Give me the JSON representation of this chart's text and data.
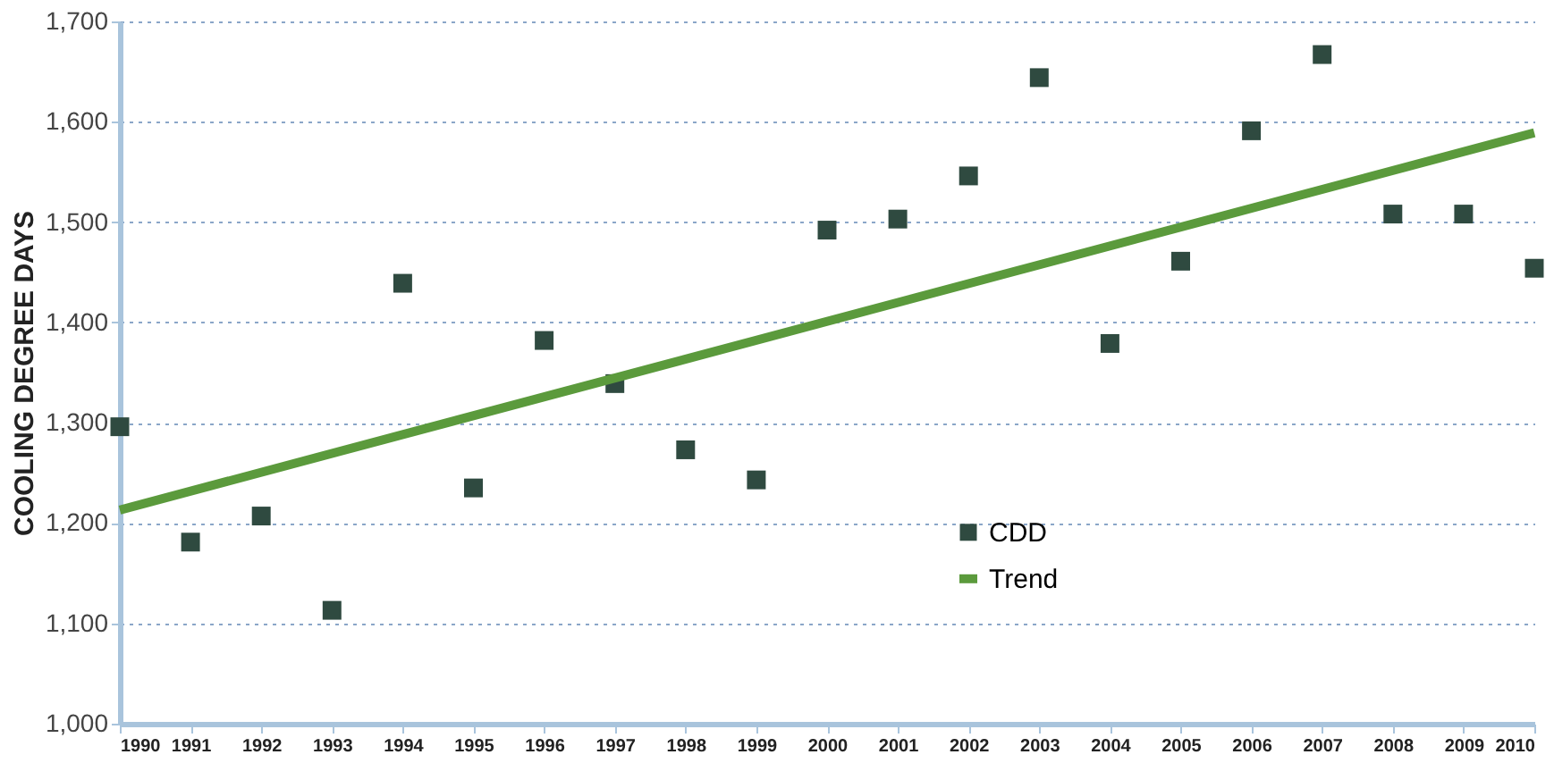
{
  "chart_data": {
    "type": "scatter",
    "ylabel": "COOLING DEGREE DAYS",
    "x": [
      1990,
      1991,
      1992,
      1993,
      1994,
      1995,
      1996,
      1997,
      1998,
      1999,
      2000,
      2001,
      2002,
      2003,
      2004,
      2005,
      2006,
      2007,
      2008,
      2009,
      2010
    ],
    "series": [
      {
        "name": "CDD",
        "color": "#2f4a40",
        "marker": "square",
        "values": [
          1296,
          1181,
          1207,
          1113,
          1439,
          1235,
          1382,
          1339,
          1273,
          1243,
          1492,
          1503,
          1546,
          1644,
          1379,
          1461,
          1591,
          1667,
          1508,
          1508,
          1454
        ]
      },
      {
        "name": "Trend",
        "type": "line",
        "line_style": "solid",
        "color": "#5b9a3c",
        "x": [
          1990,
          2010
        ],
        "values": [
          1213,
          1589
        ]
      }
    ],
    "xlim": [
      1990,
      2010
    ],
    "xticks": [
      1990,
      1991,
      1992,
      1993,
      1994,
      1995,
      1996,
      1997,
      1998,
      1999,
      2000,
      2001,
      2002,
      2003,
      2004,
      2005,
      2006,
      2007,
      2008,
      2009,
      2010
    ],
    "ylim": [
      1000,
      1700
    ],
    "yticks": [
      {
        "value": 1000,
        "label": "1,000"
      },
      {
        "value": 1100,
        "label": "1,100"
      },
      {
        "value": 1200,
        "label": "1,200"
      },
      {
        "value": 1300,
        "label": "1,300"
      },
      {
        "value": 1400,
        "label": "1,400"
      },
      {
        "value": 1500,
        "label": "1,500"
      },
      {
        "value": 1600,
        "label": "1,600"
      },
      {
        "value": 1700,
        "label": "1,700"
      }
    ],
    "grid": "y",
    "legend": "bottom right"
  }
}
